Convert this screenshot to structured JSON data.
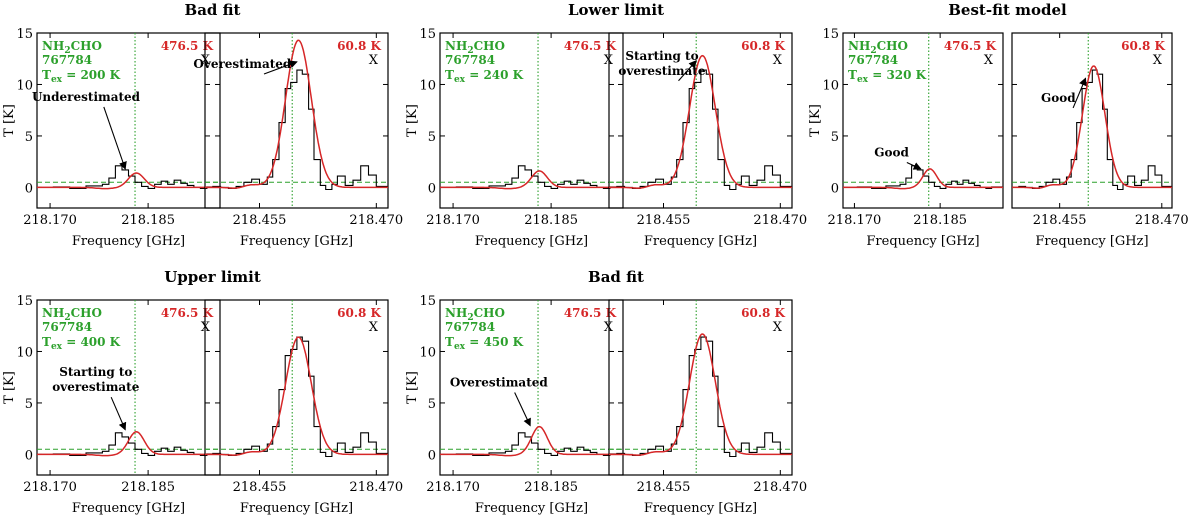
{
  "chart_data": {
    "type": "line",
    "description_rows": 2,
    "shared": {
      "xlabel": "Frequency [GHz]",
      "ylabel": "T [K]",
      "ylim": [
        -2,
        15
      ],
      "yticks": [
        0,
        5,
        10,
        15
      ],
      "molecule_base": "NH",
      "molecule_sub": "2",
      "molecule_rest": "CHO",
      "tag": "767784",
      "tex_prefix": "T",
      "tex_sub": "ex",
      "left_panel": {
        "xlim": [
          218.168,
          218.196
        ],
        "xticks": [
          "218.170",
          "218.185"
        ],
        "tick_values": [
          218.17,
          218.185
        ],
        "line_freq": 218.183,
        "eup_label": "476.5 K",
        "marker": "X"
      },
      "right_panel": {
        "xlim": [
          218.448,
          218.4715
        ],
        "xticks": [
          "218.455",
          "218.470"
        ],
        "tick_values": [
          218.455,
          218.47
        ],
        "line_freq": 218.4592,
        "eup_label": "60.8 K",
        "marker": "X"
      },
      "noise_level": 0.5,
      "observed_left": {
        "x": [
          218.168,
          218.1705,
          218.173,
          218.1755,
          218.178,
          218.179,
          218.18,
          218.181,
          218.182,
          218.183,
          218.184,
          218.185,
          218.186,
          218.187,
          218.188,
          218.189,
          218.19,
          218.191,
          218.192,
          218.193,
          218.194,
          218.196
        ],
        "y": [
          0.0,
          0.05,
          -0.1,
          0.15,
          0.3,
          0.9,
          2.1,
          1.7,
          1.1,
          0.5,
          0.1,
          -0.1,
          0.3,
          0.6,
          0.3,
          0.7,
          0.4,
          0.2,
          0.0,
          -0.1,
          0.05,
          0.0
        ]
      },
      "observed_right": {
        "x": [
          218.448,
          218.449,
          218.45,
          218.451,
          218.452,
          218.453,
          218.454,
          218.455,
          218.456,
          218.4567,
          218.4575,
          218.4583,
          218.459,
          218.4598,
          218.4605,
          218.4613,
          218.462,
          218.4628,
          218.4635,
          218.4643,
          218.465,
          218.466,
          218.467,
          218.468,
          218.469,
          218.47,
          218.4715
        ],
        "y": [
          0.0,
          0.1,
          0.0,
          -0.1,
          0.1,
          0.5,
          0.8,
          0.3,
          1.0,
          2.7,
          6.3,
          9.6,
          10.2,
          11.4,
          11.0,
          7.6,
          2.7,
          0.2,
          -0.2,
          0.3,
          1.1,
          0.2,
          0.7,
          2.1,
          1.2,
          0.1,
          0.0
        ]
      }
    },
    "panels": [
      {
        "title": "Bad fit",
        "tex_value": " = 200 K",
        "model_left": {
          "amplitude": 1.4,
          "center": 218.1832,
          "sigma": 0.0012
        },
        "model_right": {
          "amplitude": 14.3,
          "center": 218.46,
          "sigma": 0.00165
        },
        "left_annotation": {
          "text_lines": [
            "Underestimated"
          ],
          "target_x": 218.1815,
          "target_y": 1.8,
          "text_x": 218.1755,
          "text_y": 8.4
        },
        "right_annotation": {
          "text_lines": [
            "Overestimated"
          ],
          "target_x": 218.4598,
          "target_y": 12.2,
          "text_x": 218.4528,
          "text_y": 11.6
        }
      },
      {
        "title": "Lower limit",
        "tex_value": " = 240 K",
        "model_left": {
          "amplitude": 1.6,
          "center": 218.1832,
          "sigma": 0.0012
        },
        "model_right": {
          "amplitude": 12.8,
          "center": 218.46,
          "sigma": 0.00165
        },
        "left_annotation": null,
        "right_annotation": {
          "text_lines": [
            "Starting to",
            "overestimate"
          ],
          "target_x": 218.4592,
          "target_y": 12.3,
          "text_x": 218.4548,
          "text_y": 12.4
        }
      },
      {
        "title": "Best-fit model",
        "tex_value": " = 320 K",
        "model_left": {
          "amplitude": 1.8,
          "center": 218.1832,
          "sigma": 0.0012
        },
        "model_right": {
          "amplitude": 11.8,
          "center": 218.46,
          "sigma": 0.00165
        },
        "left_annotation": {
          "text_lines": [
            "Good"
          ],
          "target_x": 218.1816,
          "target_y": 1.8,
          "text_x": 218.1765,
          "text_y": 3.0
        },
        "right_annotation": {
          "text_lines": [
            "Good"
          ],
          "target_x": 218.4588,
          "target_y": 10.6,
          "text_x": 218.4548,
          "text_y": 8.3
        }
      },
      {
        "title": "Upper limit",
        "tex_value": " = 400 K",
        "model_left": {
          "amplitude": 2.2,
          "center": 218.1832,
          "sigma": 0.0012
        },
        "model_right": {
          "amplitude": 11.4,
          "center": 218.46,
          "sigma": 0.00165
        },
        "left_annotation": {
          "text_lines": [
            "Starting to",
            "overestimate"
          ],
          "target_x": 218.1815,
          "target_y": 2.4,
          "text_x": 218.177,
          "text_y": 7.6
        },
        "right_annotation": null
      },
      {
        "title": "Bad fit",
        "tex_value": " = 450 K",
        "model_left": {
          "amplitude": 2.7,
          "center": 218.1832,
          "sigma": 0.0012
        },
        "model_right": {
          "amplitude": 11.7,
          "center": 218.46,
          "sigma": 0.00165
        },
        "left_annotation": {
          "text_lines": [
            "Overestimated"
          ],
          "target_x": 218.1818,
          "target_y": 2.8,
          "text_x": 218.177,
          "text_y": 6.6
        },
        "right_annotation": null
      }
    ]
  },
  "colors": {
    "observed": "#000000",
    "model": "#d62728",
    "marker_line": "#2ca02c",
    "noise_line": "#2ca02c",
    "molecule_text": "#2ca02c",
    "temperature_text": "#d62728"
  }
}
